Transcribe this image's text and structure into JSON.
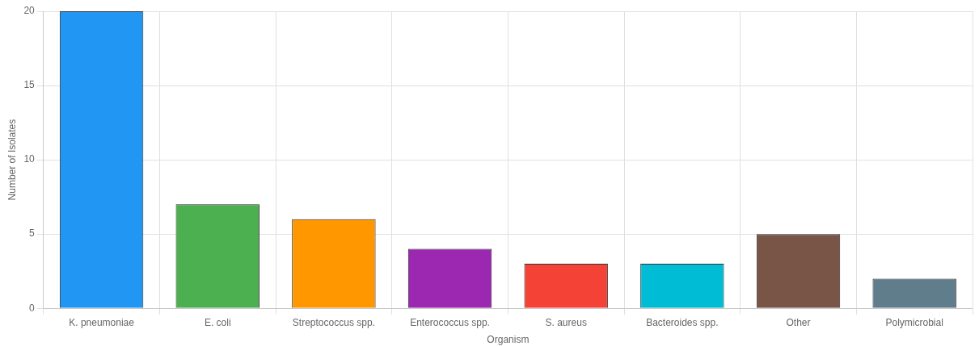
{
  "chart_data": {
    "type": "bar",
    "xlabel": "Organism",
    "ylabel": "Number of Isolates",
    "categories": [
      "K. pneumoniae",
      "E. coli",
      "Streptococcus spp.",
      "Enterococcus spp.",
      "S. aureus",
      "Bacteroides spp.",
      "Other",
      "Polymicrobial"
    ],
    "values": [
      20,
      7,
      6,
      4,
      3,
      3,
      5,
      2
    ],
    "colors": [
      "#2196f3",
      "#4caf50",
      "#ff9800",
      "#9c27b0",
      "#f44336",
      "#00bcd4",
      "#795548",
      "#607d8b"
    ],
    "ylim": [
      0,
      20
    ],
    "yticks": [
      0,
      5,
      10,
      15,
      20
    ],
    "grid": true,
    "legend": false
  }
}
